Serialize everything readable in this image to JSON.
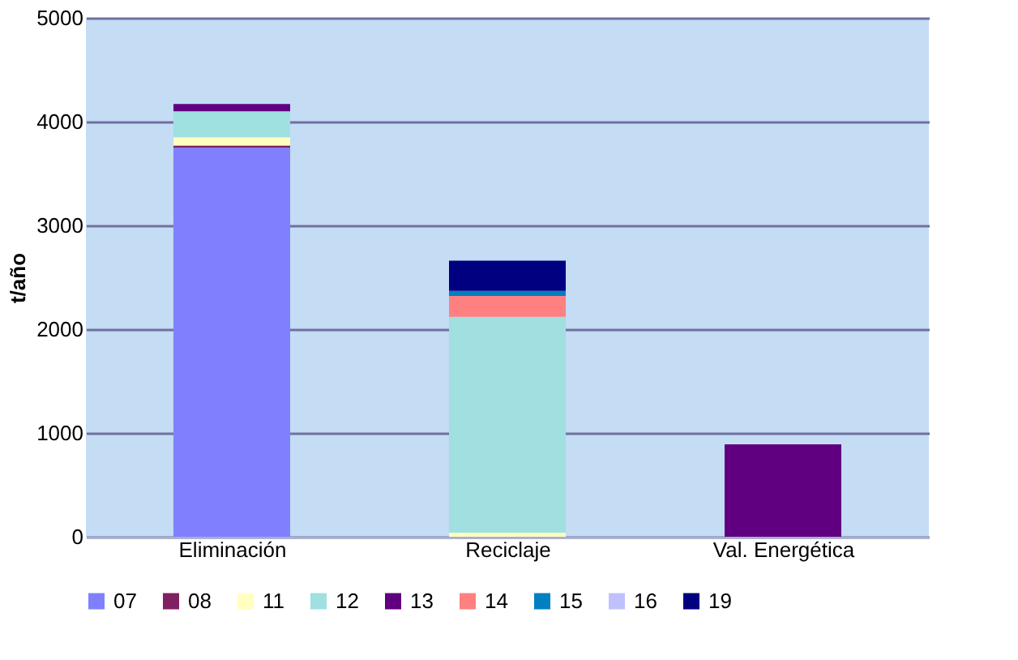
{
  "chart_data": {
    "type": "bar",
    "stacked": true,
    "categories": [
      "Eliminación",
      "Reciclaje",
      "Val. Energética"
    ],
    "ylabel": "t/año",
    "ylim": [
      0,
      5000
    ],
    "yticks": [
      0,
      1000,
      2000,
      3000,
      4000,
      5000
    ],
    "grid": "y",
    "legend": "bottom",
    "series": [
      {
        "name": "07",
        "color": "#8080ff",
        "values": [
          3750,
          0,
          0
        ]
      },
      {
        "name": "08",
        "color": "#802060",
        "values": [
          20,
          0,
          0
        ]
      },
      {
        "name": "11",
        "color": "#ffffc0",
        "values": [
          80,
          40,
          0
        ]
      },
      {
        "name": "12",
        "color": "#a0e0e0",
        "values": [
          250,
          2080,
          0
        ]
      },
      {
        "name": "13",
        "color": "#600080",
        "values": [
          70,
          0,
          890
        ]
      },
      {
        "name": "14",
        "color": "#ff8080",
        "values": [
          0,
          200,
          0
        ]
      },
      {
        "name": "15",
        "color": "#0080c0",
        "values": [
          0,
          50,
          0
        ]
      },
      {
        "name": "16",
        "color": "#c0c0ff",
        "values": [
          0,
          0,
          0
        ]
      },
      {
        "name": "19",
        "color": "#000080",
        "values": [
          0,
          290,
          0
        ]
      }
    ]
  }
}
